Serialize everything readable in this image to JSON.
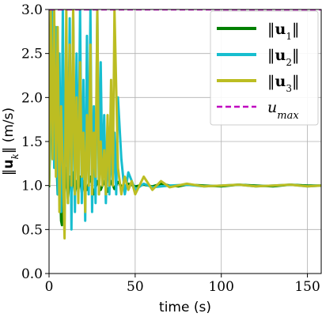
{
  "chart_data": {
    "type": "line",
    "xlabel": "time (s)",
    "ylabel_parts": [
      "‖",
      "u",
      "k",
      "‖ (m/s)"
    ],
    "xlim": [
      0,
      158
    ],
    "ylim": [
      0,
      3.0
    ],
    "xticks": [
      0,
      50,
      100,
      150
    ],
    "xtick_labels": [
      "0",
      "50",
      "100",
      "150"
    ],
    "yticks": [
      0.0,
      0.5,
      1.0,
      1.5,
      2.0,
      2.5,
      3.0
    ],
    "ytick_labels": [
      "0.0",
      "0.5",
      "1.0",
      "1.5",
      "2.0",
      "2.5",
      "3.0"
    ],
    "grid": true,
    "legend_position": "top-right",
    "u_max": 3.0,
    "series": [
      {
        "name": "u1",
        "legend_parts": [
          "‖",
          "u",
          "1",
          "‖"
        ],
        "color": "#008000",
        "x": [
          0,
          2,
          4,
          5,
          6,
          7,
          7.5,
          8,
          9,
          10,
          11,
          12,
          13,
          14,
          15,
          16,
          17,
          18,
          19,
          20,
          22,
          24,
          26,
          28,
          30,
          32,
          34,
          36,
          38,
          40,
          43,
          46,
          50,
          55,
          60,
          65,
          70,
          75,
          80,
          90,
          100,
          110,
          120,
          130,
          140,
          150,
          158
        ],
        "y": [
          0.98,
          2.6,
          1.5,
          0.9,
          1.3,
          0.6,
          0.55,
          1.4,
          0.9,
          1.2,
          0.85,
          1.1,
          0.95,
          1.15,
          0.9,
          1.05,
          0.95,
          1.1,
          0.92,
          1.05,
          0.95,
          1.1,
          0.9,
          1.05,
          0.95,
          1.05,
          0.93,
          1.05,
          0.96,
          1.04,
          0.97,
          1.02,
          0.99,
          1.01,
          0.99,
          1.02,
          1.0,
          0.99,
          1.01,
          1.0,
          0.99,
          1.01,
          1.0,
          0.99,
          1.01,
          1.0,
          1.0
        ]
      },
      {
        "name": "u2",
        "legend_parts": [
          "‖",
          "u",
          "2",
          "‖"
        ],
        "color": "#17becf",
        "x": [
          0,
          2,
          3,
          4,
          5,
          6,
          7,
          8,
          9,
          10,
          11,
          12,
          13,
          14,
          15,
          16,
          17,
          18,
          19,
          20,
          21,
          22,
          23,
          24,
          25,
          26,
          27,
          28,
          29,
          30,
          31,
          32,
          33,
          34,
          35,
          36,
          37,
          38,
          39,
          40,
          42,
          44,
          46,
          50,
          55,
          60,
          70,
          80,
          90,
          100,
          110,
          120,
          130,
          140,
          150,
          158
        ],
        "y": [
          1.0,
          3.0,
          1.2,
          2.8,
          0.9,
          2.5,
          0.7,
          3.0,
          0.6,
          2.6,
          0.8,
          2.9,
          0.5,
          3.0,
          0.7,
          2.5,
          0.9,
          3.0,
          0.8,
          2.2,
          0.6,
          2.7,
          0.9,
          3.0,
          0.7,
          1.9,
          0.8,
          3.0,
          0.9,
          2.4,
          1.0,
          1.8,
          0.8,
          1.5,
          0.9,
          1.5,
          1.0,
          1.6,
          0.9,
          2.0,
          1.3,
          0.9,
          1.15,
          0.95,
          1.02,
          0.98,
          1.0,
          1.01,
          0.99,
          1.0,
          1.01,
          0.99,
          1.0,
          1.01,
          0.99,
          1.0
        ]
      },
      {
        "name": "u3",
        "legend_parts": [
          "‖",
          "u",
          "3",
          "‖"
        ],
        "color": "#bcbd22",
        "x": [
          0,
          1,
          2,
          3,
          4,
          5,
          6,
          7,
          8,
          9,
          10,
          11,
          12,
          13,
          14,
          15,
          16,
          17,
          18,
          19,
          20,
          21,
          22,
          23,
          24,
          25,
          26,
          27,
          28,
          29,
          30,
          31,
          32,
          33,
          34,
          35,
          36,
          37,
          38,
          40,
          42,
          44,
          46,
          48,
          50,
          55,
          60,
          65,
          70,
          80,
          90,
          100,
          110,
          120,
          130,
          140,
          150,
          158
        ],
        "y": [
          1.0,
          3.0,
          1.3,
          3.0,
          1.1,
          2.8,
          0.7,
          1.9,
          1.2,
          0.4,
          3.0,
          0.8,
          2.6,
          1.0,
          3.0,
          0.9,
          2.0,
          0.8,
          2.4,
          1.1,
          1.6,
          0.7,
          1.8,
          1.0,
          2.6,
          0.9,
          1.6,
          1.1,
          3.0,
          0.9,
          1.5,
          1.0,
          1.4,
          0.9,
          1.8,
          1.0,
          2.2,
          1.0,
          3.0,
          1.2,
          0.9,
          1.1,
          0.95,
          1.05,
          0.9,
          1.1,
          0.95,
          1.05,
          0.98,
          1.02,
          0.99,
          1.0,
          1.01,
          0.99,
          1.0,
          1.01,
          0.99,
          1.0
        ]
      }
    ],
    "reference_line": {
      "name": "u_max",
      "legend_main": "u",
      "legend_sub": "max",
      "color": "#c000c0",
      "y": 3.0
    }
  }
}
